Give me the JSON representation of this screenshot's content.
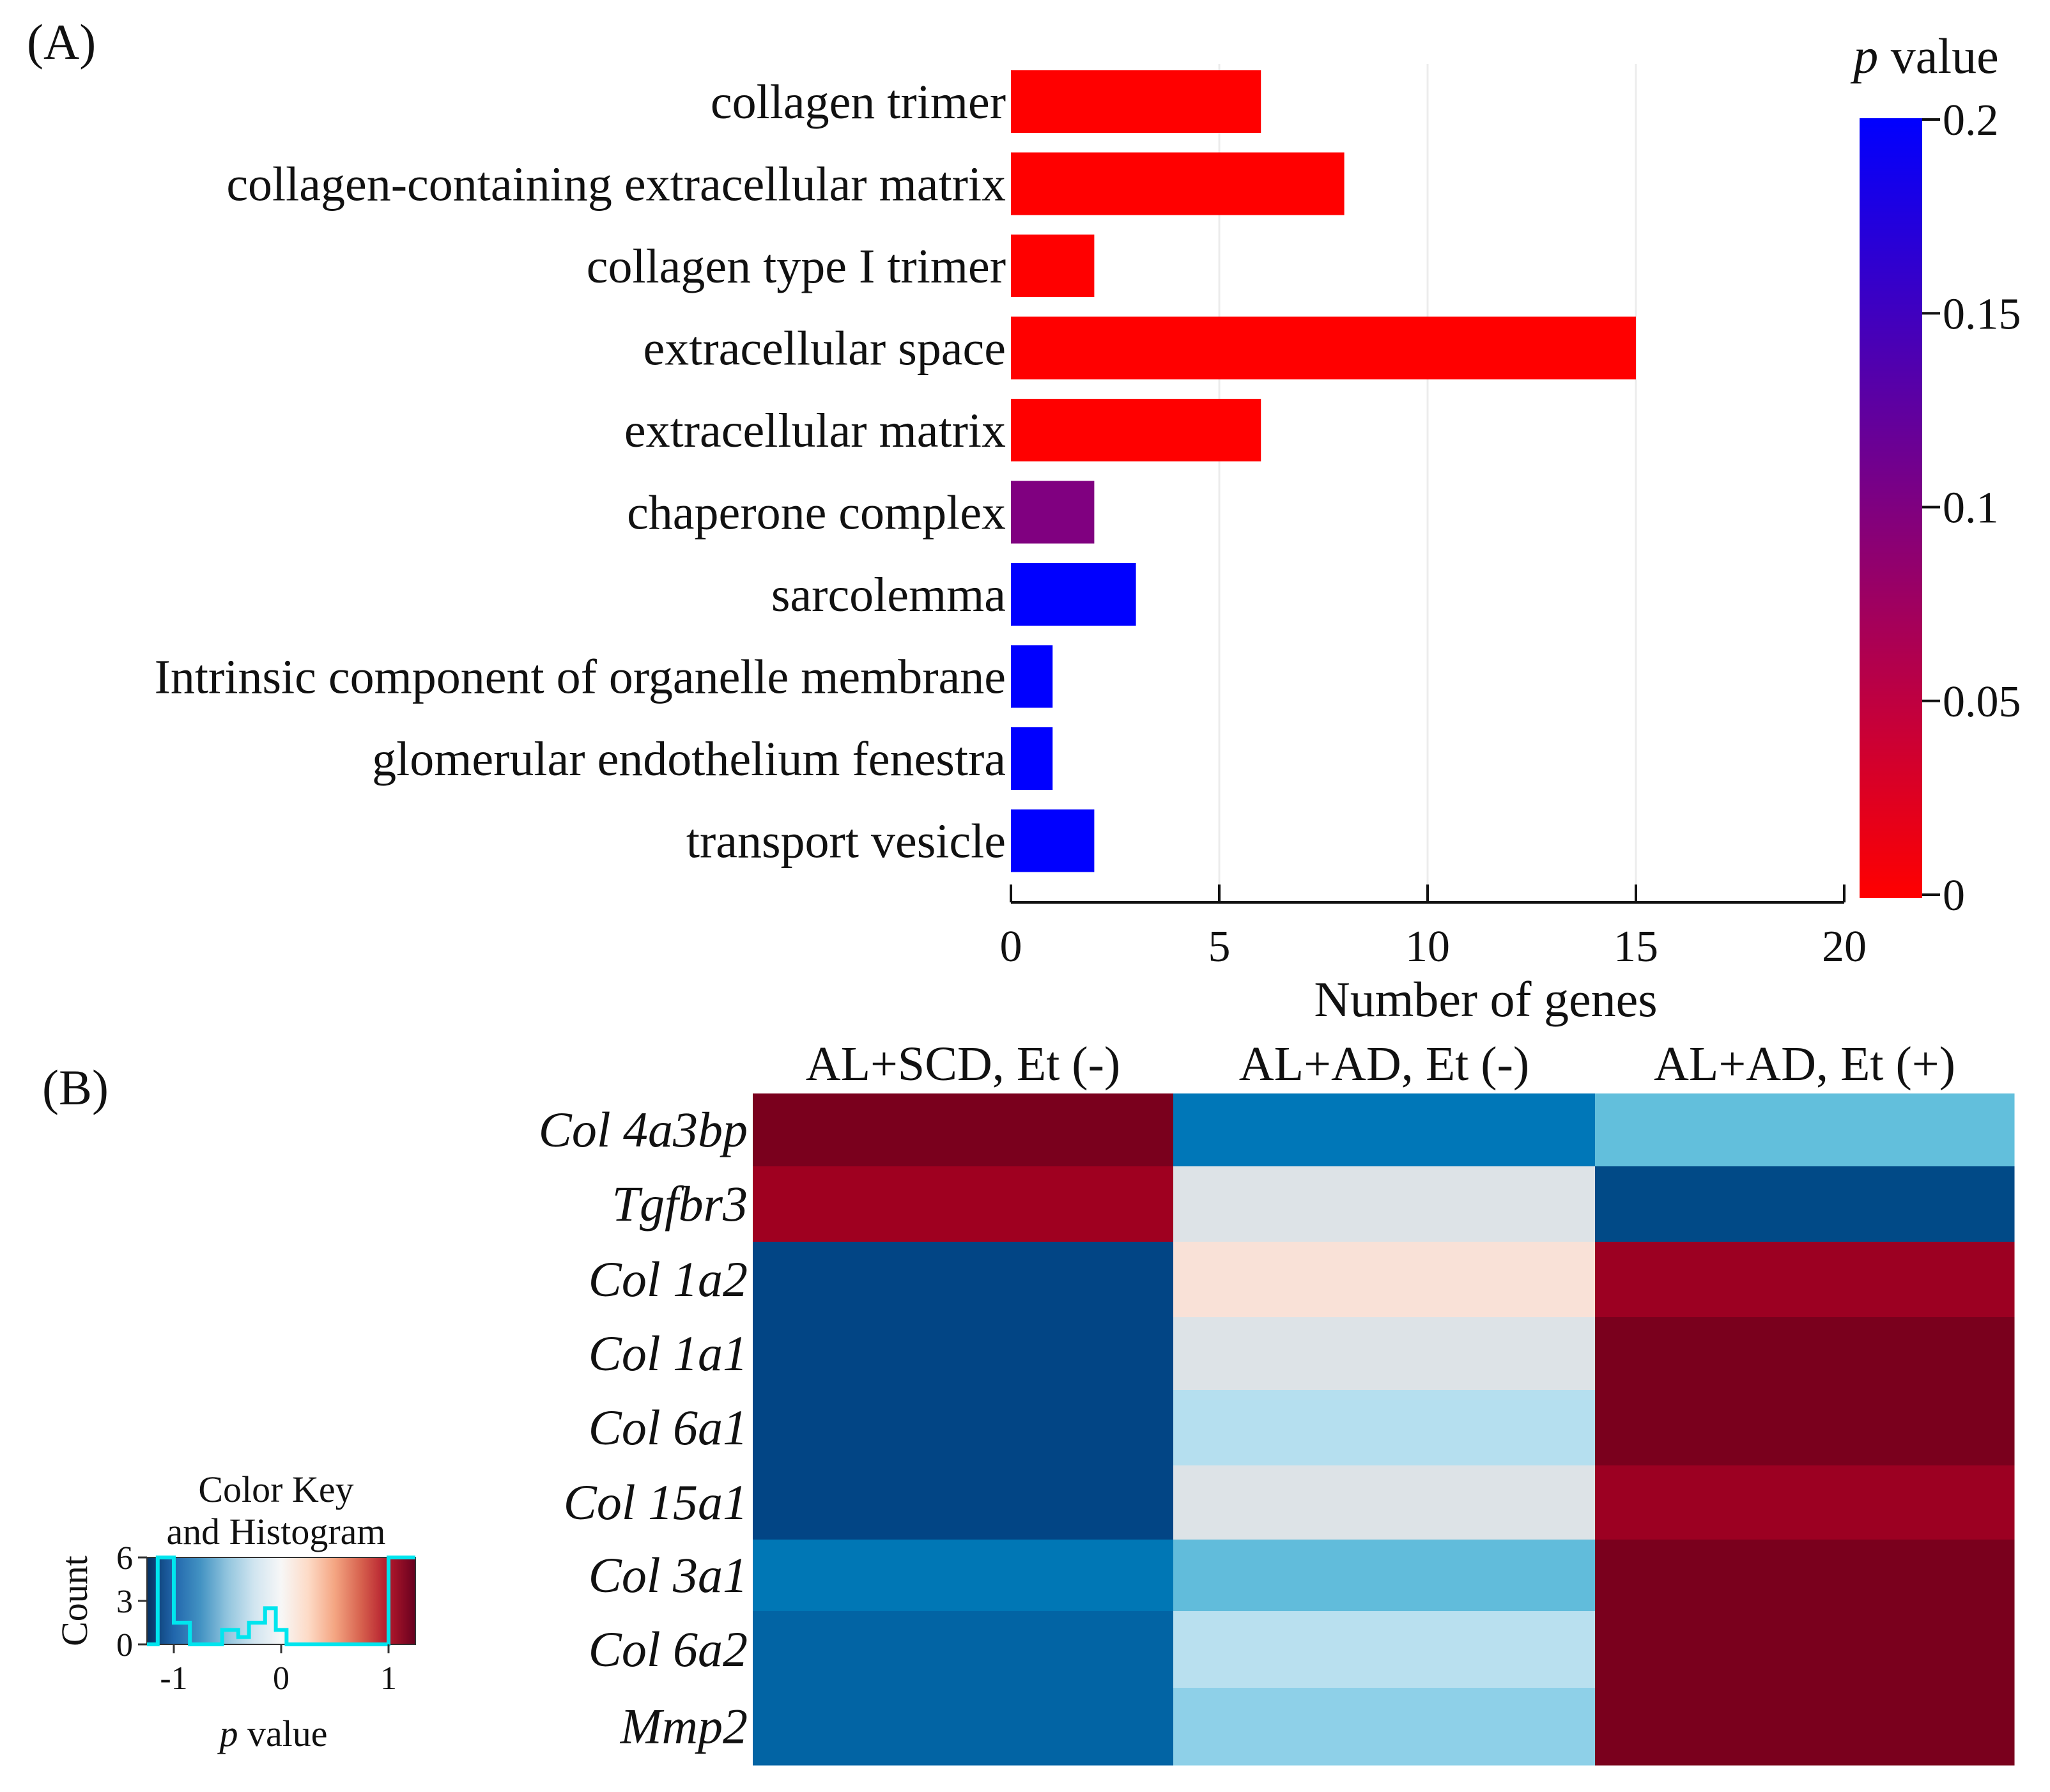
{
  "panel_a": {
    "label": "(A)"
  },
  "panel_b": {
    "label": "(B)"
  },
  "chart_data": [
    {
      "type": "bar",
      "orientation": "horizontal",
      "title": "",
      "xlabel": "Number of genes",
      "ylabel": "",
      "xlim": [
        0,
        20
      ],
      "xticks": [
        0,
        5,
        10,
        15,
        20
      ],
      "grid": true,
      "categories": [
        "collagen trimer",
        "collagen-containing extracellular matrix",
        "collagen type I trimer",
        "extracellular space",
        "extracellular matrix",
        "chaperone complex",
        "sarcolemma",
        "Intrinsic component of organelle membrane",
        "glomerular endothelium fenestra",
        "transport vesicle"
      ],
      "values": [
        6,
        8,
        2,
        15,
        6,
        2,
        3,
        1,
        1,
        2
      ],
      "p_values": [
        0.0,
        0.0,
        0.0,
        0.0,
        0.0,
        0.13,
        0.2,
        0.2,
        0.2,
        0.2
      ],
      "bar_colors": [
        "#ff0000",
        "#ff0000",
        "#ff0000",
        "#ff0000",
        "#ff0000",
        "#800080",
        "#0000ff",
        "#0000ff",
        "#0000ff",
        "#0000ff"
      ],
      "colorbar": {
        "title_italic": "p",
        "title_rest": " value",
        "range": [
          0,
          0.2
        ],
        "ticks": [
          "0",
          "0.05",
          "0.1",
          "0.15",
          "0.2"
        ],
        "low_color": "#ff0000",
        "high_color": "#0000ff"
      }
    },
    {
      "type": "heatmap",
      "columns": [
        "AL+SCD, Et (-)",
        "AL+AD, Et (-)",
        "AL+AD, Et (+)"
      ],
      "rows": [
        "Col 4a3bp",
        "Tgfbr3",
        "Col 1a2",
        "Col 1a1",
        "Col 6a1",
        "Col 15a1",
        "Col 3a1",
        "Col 6a2",
        "Mmp2"
      ],
      "values": [
        [
          1.15,
          -0.85,
          -0.45
        ],
        [
          1.0,
          0.0,
          -1.1
        ],
        [
          -1.1,
          0.2,
          1.0
        ],
        [
          -1.1,
          0.0,
          1.15
        ],
        [
          -1.1,
          -0.2,
          1.15
        ],
        [
          -1.1,
          0.0,
          1.0
        ],
        [
          -0.85,
          -0.5,
          1.15
        ],
        [
          -1.0,
          -0.2,
          1.15
        ],
        [
          -1.0,
          -0.35,
          1.15
        ]
      ],
      "cell_colors": [
        [
          "#7a001d",
          "#0077b8",
          "#62bfdc"
        ],
        [
          "#9f0020",
          "#dde3e7",
          "#014a87"
        ],
        [
          "#024585",
          "#f9e1d7",
          "#9c0022"
        ],
        [
          "#024585",
          "#dde3e7",
          "#7a001d"
        ],
        [
          "#024585",
          "#b5dfef",
          "#7a001d"
        ],
        [
          "#024585",
          "#dde3e7",
          "#9c0022"
        ],
        [
          "#0077b5",
          "#61bcdb",
          "#7a001d"
        ],
        [
          "#0264a4",
          "#b9e0ef",
          "#7a001d"
        ],
        [
          "#0264a4",
          "#8ed0e8",
          "#7a001d"
        ]
      ],
      "color_key": {
        "title_line1": "Color Key",
        "title_line2": "and Histogram",
        "ylabel": "Count",
        "yticks": [
          "0",
          "3",
          "6"
        ],
        "xticks": [
          "-1",
          "0",
          "1"
        ],
        "xlabel_italic": "p",
        "xlabel_rest": " value",
        "gradient": [
          "#053061",
          "#2166ac",
          "#4393c3",
          "#92c5de",
          "#d1e5f0",
          "#f7f7f7",
          "#fddbc7",
          "#f4a582",
          "#d6604d",
          "#b2182b",
          "#67001f"
        ],
        "histogram_color": "#00e5ee"
      }
    }
  ]
}
